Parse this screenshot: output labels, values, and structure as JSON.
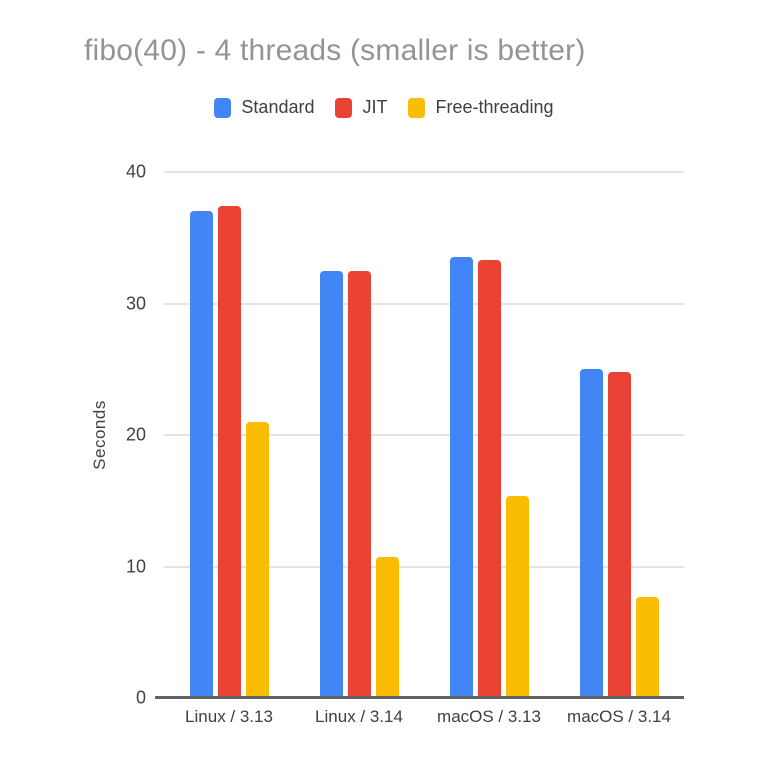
{
  "chart_data": {
    "type": "bar",
    "title": "fibo(40) - 4 threads (smaller is better)",
    "categories": [
      "Linux / 3.13",
      "Linux / 3.14",
      "macOS / 3.13",
      "macOS / 3.14"
    ],
    "series": [
      {
        "name": "Standard",
        "color": "#4285f4",
        "values": [
          37.0,
          32.5,
          33.5,
          25.0
        ]
      },
      {
        "name": "JIT",
        "color": "#ea4335",
        "values": [
          37.4,
          32.5,
          33.3,
          24.8
        ]
      },
      {
        "name": "Free-threading",
        "color": "#fbbc04",
        "values": [
          21.0,
          10.7,
          15.4,
          7.7
        ]
      }
    ],
    "xlabel": "",
    "ylabel": "Seconds",
    "ylim": [
      0,
      40
    ],
    "yticks": [
      0,
      10,
      20,
      30,
      40
    ],
    "grid": true,
    "legend_position": "top",
    "background_color": "#ffffff",
    "title_color": "#949494"
  }
}
